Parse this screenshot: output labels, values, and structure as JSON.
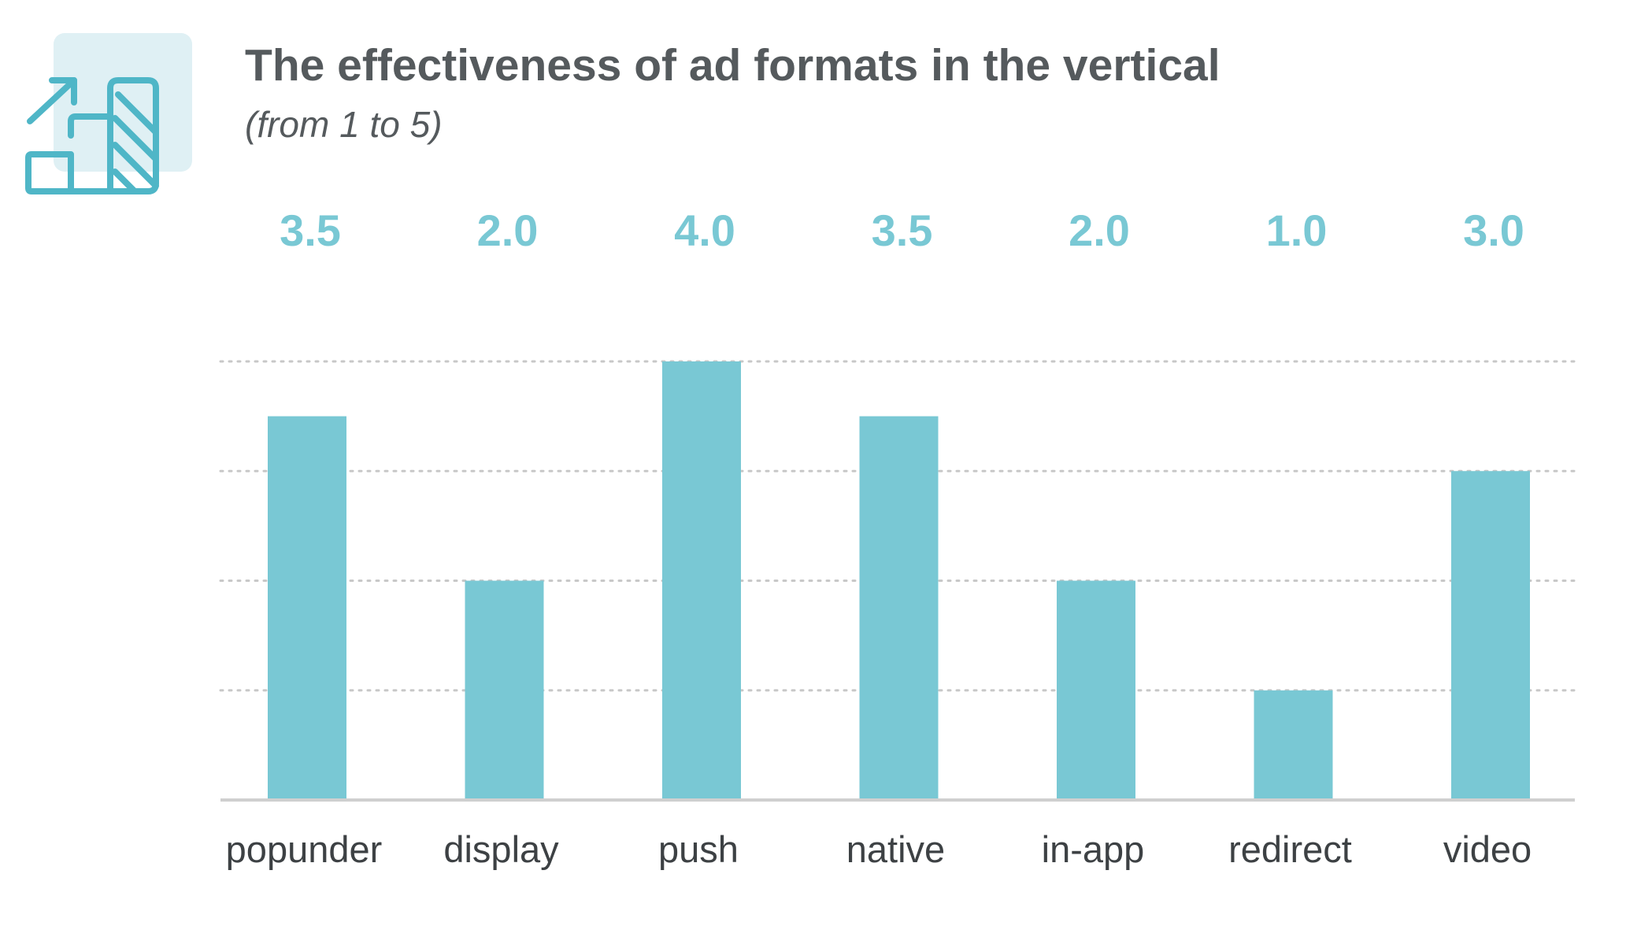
{
  "chart_data": {
    "type": "bar",
    "title": "The effectiveness of ad formats in the vertical",
    "subtitle": "(from 1 to 5)",
    "categories": [
      "popunder",
      "display",
      "push",
      "native",
      "in-app",
      "redirect",
      "video"
    ],
    "values": [
      3.5,
      2.0,
      4.0,
      3.5,
      2.0,
      1.0,
      3.0
    ],
    "value_labels": [
      "3.5",
      "2.0",
      "4.0",
      "3.5",
      "2.0",
      "1.0",
      "3.0"
    ],
    "xlabel": "",
    "ylabel": "",
    "ylim": [
      0,
      4
    ],
    "gridlines": [
      1,
      2,
      3,
      4
    ],
    "grid": true,
    "legend": "none"
  },
  "colors": {
    "bar": "#79c8d4",
    "value_label": "#79c8d4",
    "icon": "#4fb6c7",
    "icon_bg": "#dff0f4",
    "grid": "#c8c8c8",
    "axis": "#cfcfcf"
  },
  "icon": {
    "name": "growth-chart-icon"
  }
}
